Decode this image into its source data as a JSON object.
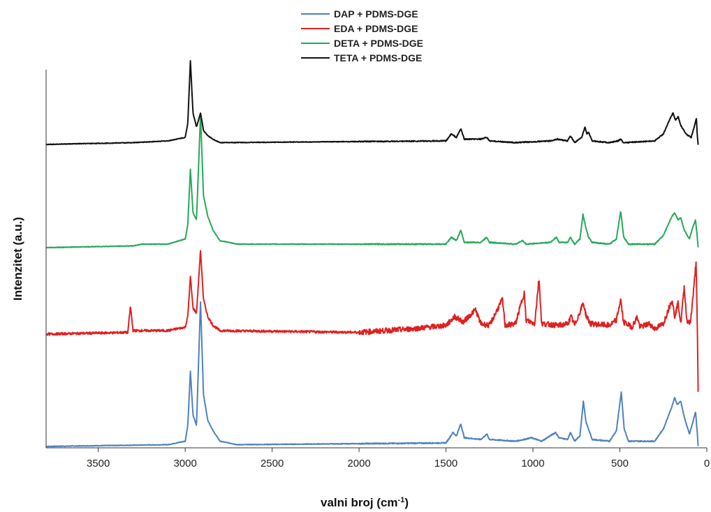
{
  "chart_data": {
    "type": "line",
    "xlabel": "valni broj (cm-1)",
    "xlabel_main": "valni broj (cm",
    "xlabel_sup": "-1",
    "xlabel_end": ")",
    "ylabel": "Intenzitet (a.u.)",
    "xlim": [
      3800,
      0
    ],
    "x_reversed": true,
    "x_ticks": [
      3500,
      3000,
      2500,
      2000,
      1500,
      1000,
      500,
      0
    ],
    "y_ticks_shown": false,
    "grid": false,
    "legend_position": "top-center",
    "series": [
      {
        "name": "DAP + PDMS-DGE",
        "color": "#4f81bd",
        "baseline": 0,
        "points": [
          [
            3800,
            0
          ],
          [
            3100,
            0.01
          ],
          [
            3000,
            0.03
          ],
          [
            2985,
            0.12
          ],
          [
            2970,
            0.43
          ],
          [
            2955,
            0.18
          ],
          [
            2935,
            0.12
          ],
          [
            2912,
            0.83
          ],
          [
            2895,
            0.3
          ],
          [
            2870,
            0.15
          ],
          [
            2840,
            0.09
          ],
          [
            2800,
            0.03
          ],
          [
            2700,
            0.01
          ],
          [
            1500,
            0.02
          ],
          [
            1460,
            0.08
          ],
          [
            1440,
            0.06
          ],
          [
            1415,
            0.13
          ],
          [
            1395,
            0.05
          ],
          [
            1300,
            0.04
          ],
          [
            1265,
            0.07
          ],
          [
            1250,
            0.04
          ],
          [
            1100,
            0.03
          ],
          [
            1050,
            0.04
          ],
          [
            1010,
            0.05
          ],
          [
            950,
            0.03
          ],
          [
            870,
            0.08
          ],
          [
            850,
            0.05
          ],
          [
            800,
            0.04
          ],
          [
            785,
            0.08
          ],
          [
            760,
            0.03
          ],
          [
            730,
            0.06
          ],
          [
            710,
            0.26
          ],
          [
            695,
            0.14
          ],
          [
            680,
            0.1
          ],
          [
            660,
            0.04
          ],
          [
            560,
            0.03
          ],
          [
            520,
            0.09
          ],
          [
            492,
            0.31
          ],
          [
            475,
            0.1
          ],
          [
            450,
            0.03
          ],
          [
            300,
            0.03
          ],
          [
            250,
            0.1
          ],
          [
            200,
            0.23
          ],
          [
            185,
            0.28
          ],
          [
            170,
            0.24
          ],
          [
            150,
            0.26
          ],
          [
            130,
            0.17
          ],
          [
            100,
            0.07
          ],
          [
            80,
            0.14
          ],
          [
            65,
            0.2
          ],
          [
            55,
            0.08
          ],
          [
            50,
            0.0
          ]
        ]
      },
      {
        "name": "EDA + PDMS-DGE",
        "color": "#e02020",
        "baseline": 0,
        "points": [
          [
            3800,
            0
          ],
          [
            3330,
            0.01
          ],
          [
            3315,
            0.16
          ],
          [
            3300,
            0.02
          ],
          [
            3100,
            0.02
          ],
          [
            3000,
            0.04
          ],
          [
            2985,
            0.1
          ],
          [
            2970,
            0.33
          ],
          [
            2955,
            0.15
          ],
          [
            2935,
            0.12
          ],
          [
            2912,
            0.48
          ],
          [
            2895,
            0.2
          ],
          [
            2870,
            0.1
          ],
          [
            2840,
            0.05
          ],
          [
            2800,
            0.02
          ],
          [
            2000,
            0.01
          ],
          [
            1700,
            0.03
          ],
          [
            1500,
            0.05
          ],
          [
            1450,
            0.1
          ],
          [
            1400,
            0.07
          ],
          [
            1330,
            0.14
          ],
          [
            1300,
            0.06
          ],
          [
            1250,
            0.05
          ],
          [
            1175,
            0.2
          ],
          [
            1160,
            0.05
          ],
          [
            1100,
            0.06
          ],
          [
            1050,
            0.24
          ],
          [
            1040,
            0.08
          ],
          [
            990,
            0.06
          ],
          [
            965,
            0.32
          ],
          [
            950,
            0.06
          ],
          [
            850,
            0.05
          ],
          [
            800,
            0.06
          ],
          [
            780,
            0.1
          ],
          [
            760,
            0.05
          ],
          [
            710,
            0.18
          ],
          [
            695,
            0.11
          ],
          [
            670,
            0.06
          ],
          [
            560,
            0.05
          ],
          [
            520,
            0.08
          ],
          [
            495,
            0.2
          ],
          [
            480,
            0.07
          ],
          [
            430,
            0.04
          ],
          [
            400,
            0.1
          ],
          [
            385,
            0.04
          ],
          [
            330,
            0.06
          ],
          [
            300,
            0.03
          ],
          [
            250,
            0.06
          ],
          [
            200,
            0.2
          ],
          [
            185,
            0.1
          ],
          [
            165,
            0.18
          ],
          [
            150,
            0.06
          ],
          [
            130,
            0.27
          ],
          [
            115,
            0.08
          ],
          [
            95,
            0.06
          ],
          [
            75,
            0.26
          ],
          [
            62,
            0.42
          ],
          [
            55,
            0.05
          ],
          [
            50,
            -0.33
          ]
        ]
      },
      {
        "name": "DETA + PDMS-DGE",
        "color": "#27a85a",
        "baseline": 0,
        "points": [
          [
            3800,
            0
          ],
          [
            3300,
            0.01
          ],
          [
            3250,
            0.02
          ],
          [
            3100,
            0.02
          ],
          [
            3000,
            0.05
          ],
          [
            2985,
            0.13
          ],
          [
            2970,
            0.45
          ],
          [
            2955,
            0.2
          ],
          [
            2935,
            0.16
          ],
          [
            2912,
            0.76
          ],
          [
            2895,
            0.3
          ],
          [
            2870,
            0.18
          ],
          [
            2840,
            0.1
          ],
          [
            2800,
            0.04
          ],
          [
            2700,
            0.02
          ],
          [
            1500,
            0.02
          ],
          [
            1470,
            0.06
          ],
          [
            1440,
            0.04
          ],
          [
            1415,
            0.1
          ],
          [
            1395,
            0.03
          ],
          [
            1300,
            0.03
          ],
          [
            1265,
            0.06
          ],
          [
            1250,
            0.03
          ],
          [
            1100,
            0.02
          ],
          [
            1060,
            0.04
          ],
          [
            1040,
            0.02
          ],
          [
            900,
            0.03
          ],
          [
            865,
            0.06
          ],
          [
            850,
            0.03
          ],
          [
            800,
            0.03
          ],
          [
            785,
            0.06
          ],
          [
            760,
            0.02
          ],
          [
            730,
            0.05
          ],
          [
            712,
            0.19
          ],
          [
            695,
            0.11
          ],
          [
            680,
            0.06
          ],
          [
            660,
            0.03
          ],
          [
            560,
            0.02
          ],
          [
            520,
            0.05
          ],
          [
            495,
            0.21
          ],
          [
            478,
            0.06
          ],
          [
            450,
            0.02
          ],
          [
            300,
            0.02
          ],
          [
            250,
            0.07
          ],
          [
            200,
            0.18
          ],
          [
            185,
            0.2
          ],
          [
            165,
            0.16
          ],
          [
            150,
            0.17
          ],
          [
            130,
            0.1
          ],
          [
            100,
            0.05
          ],
          [
            80,
            0.12
          ],
          [
            65,
            0.16
          ],
          [
            55,
            0.06
          ],
          [
            50,
            0.0
          ]
        ]
      },
      {
        "name": "TETA + PDMS-DGE",
        "color": "#111111",
        "baseline": 0,
        "points": [
          [
            3800,
            0
          ],
          [
            3300,
            0.01
          ],
          [
            3100,
            0.02
          ],
          [
            3000,
            0.04
          ],
          [
            2985,
            0.12
          ],
          [
            2970,
            0.48
          ],
          [
            2955,
            0.18
          ],
          [
            2935,
            0.1
          ],
          [
            2912,
            0.18
          ],
          [
            2895,
            0.08
          ],
          [
            2870,
            0.05
          ],
          [
            2840,
            0.03
          ],
          [
            2800,
            0.01
          ],
          [
            1500,
            0.02
          ],
          [
            1470,
            0.06
          ],
          [
            1440,
            0.04
          ],
          [
            1415,
            0.09
          ],
          [
            1395,
            0.03
          ],
          [
            1300,
            0.03
          ],
          [
            1265,
            0.04
          ],
          [
            1250,
            0.02
          ],
          [
            1100,
            0.01
          ],
          [
            900,
            0.02
          ],
          [
            860,
            0.03
          ],
          [
            800,
            0.02
          ],
          [
            785,
            0.05
          ],
          [
            760,
            0.01
          ],
          [
            720,
            0.04
          ],
          [
            700,
            0.1
          ],
          [
            690,
            0.06
          ],
          [
            680,
            0.07
          ],
          [
            660,
            0.02
          ],
          [
            560,
            0.01
          ],
          [
            510,
            0.02
          ],
          [
            495,
            0.03
          ],
          [
            480,
            0.01
          ],
          [
            300,
            0.02
          ],
          [
            250,
            0.06
          ],
          [
            205,
            0.16
          ],
          [
            195,
            0.18
          ],
          [
            180,
            0.14
          ],
          [
            165,
            0.16
          ],
          [
            150,
            0.11
          ],
          [
            120,
            0.06
          ],
          [
            90,
            0.04
          ],
          [
            70,
            0.11
          ],
          [
            60,
            0.15
          ],
          [
            55,
            0.05
          ],
          [
            50,
            0.0
          ]
        ]
      }
    ]
  }
}
